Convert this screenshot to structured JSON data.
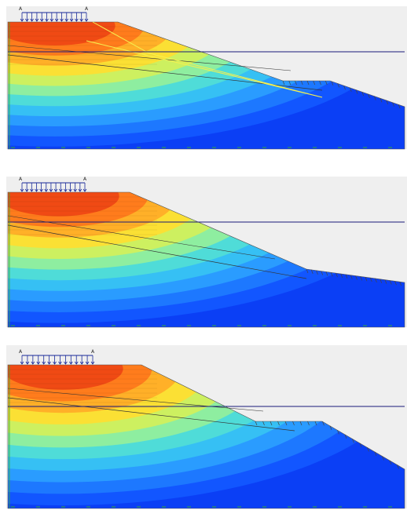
{
  "panels": [
    {
      "load_labels": [
        "A",
        "A"
      ]
    },
    {
      "load_labels": [
        "A",
        "A"
      ]
    },
    {
      "load_labels": [
        "A",
        "A"
      ]
    }
  ]
}
